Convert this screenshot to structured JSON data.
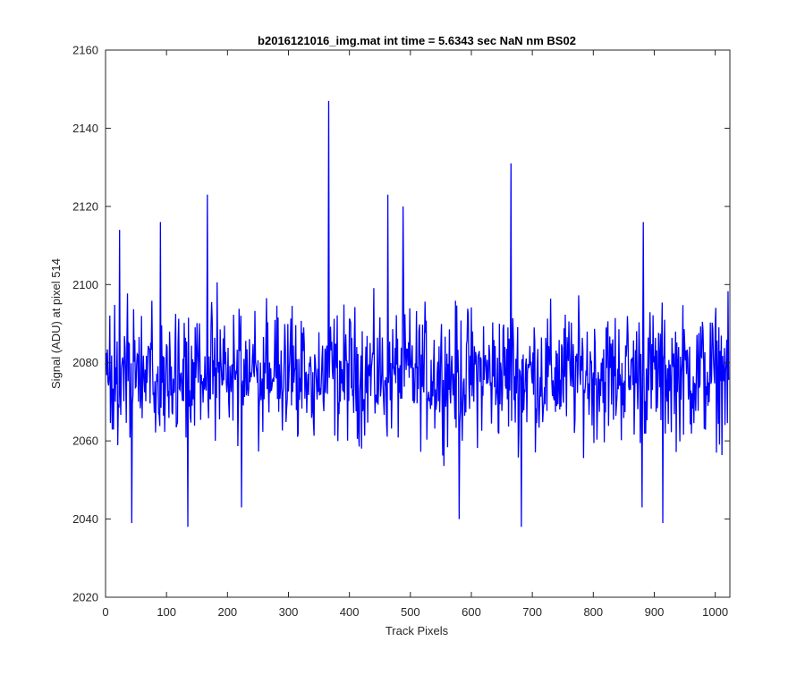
{
  "chart_data": {
    "type": "line",
    "title": "b2016121016_img.mat int time = 5.6343 sec  NaN nm BS02",
    "xlabel": "Track Pixels",
    "ylabel": "Signal (ADU) at pixel 514",
    "xlim": [
      0,
      1024
    ],
    "ylim": [
      2020,
      2160
    ],
    "xticks": [
      0,
      100,
      200,
      300,
      400,
      500,
      600,
      700,
      800,
      900,
      1000
    ],
    "yticks": [
      2020,
      2040,
      2060,
      2080,
      2100,
      2120,
      2140,
      2160
    ],
    "grid": false,
    "line_color": "#0000ff",
    "series": [
      {
        "baseline_mean": 2077,
        "noise_amplitude": 13,
        "num_points": 1024,
        "peaks": [
          {
            "x": 366,
            "y": 2147
          },
          {
            "x": 665,
            "y": 2131
          },
          {
            "x": 167,
            "y": 2123
          },
          {
            "x": 463,
            "y": 2123
          },
          {
            "x": 488,
            "y": 2120
          },
          {
            "x": 23,
            "y": 2114
          },
          {
            "x": 90,
            "y": 2116
          },
          {
            "x": 882,
            "y": 2116
          }
        ],
        "troughs": [
          {
            "x": 135,
            "y": 2038
          },
          {
            "x": 682,
            "y": 2038
          },
          {
            "x": 43,
            "y": 2039
          },
          {
            "x": 914,
            "y": 2039
          },
          {
            "x": 580,
            "y": 2040
          },
          {
            "x": 223,
            "y": 2043
          },
          {
            "x": 880,
            "y": 2043
          }
        ]
      }
    ]
  }
}
